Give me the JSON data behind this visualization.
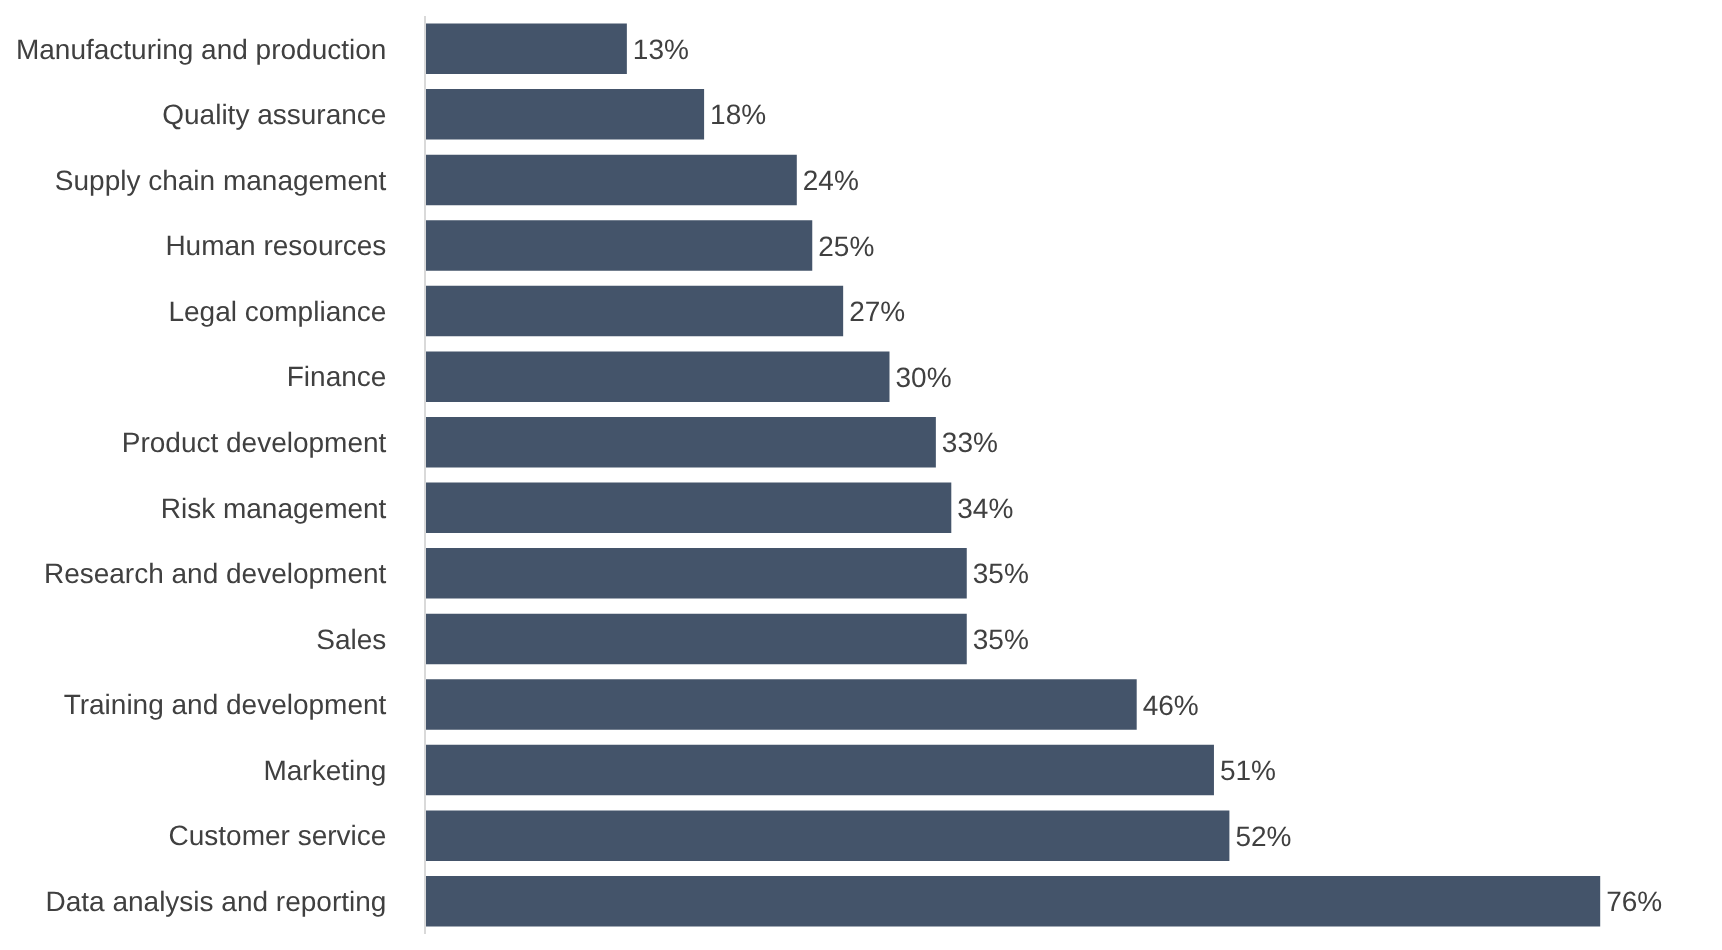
{
  "chart_data": {
    "type": "bar",
    "orientation": "horizontal",
    "categories": [
      "Manufacturing and production",
      "Quality assurance",
      "Supply chain management",
      "Human resources",
      "Legal compliance",
      "Finance",
      "Product development",
      "Risk management",
      "Research and development",
      "Sales",
      "Training and development",
      "Marketing",
      "Customer service",
      "Data analysis and reporting"
    ],
    "values": [
      13,
      18,
      24,
      25,
      27,
      30,
      33,
      34,
      35,
      35,
      46,
      51,
      52,
      76
    ],
    "value_labels": [
      "13%",
      "18%",
      "24%",
      "25%",
      "27%",
      "30%",
      "33%",
      "34%",
      "35%",
      "35%",
      "46%",
      "51%",
      "52%",
      "76%"
    ],
    "color": "#44546a"
  }
}
